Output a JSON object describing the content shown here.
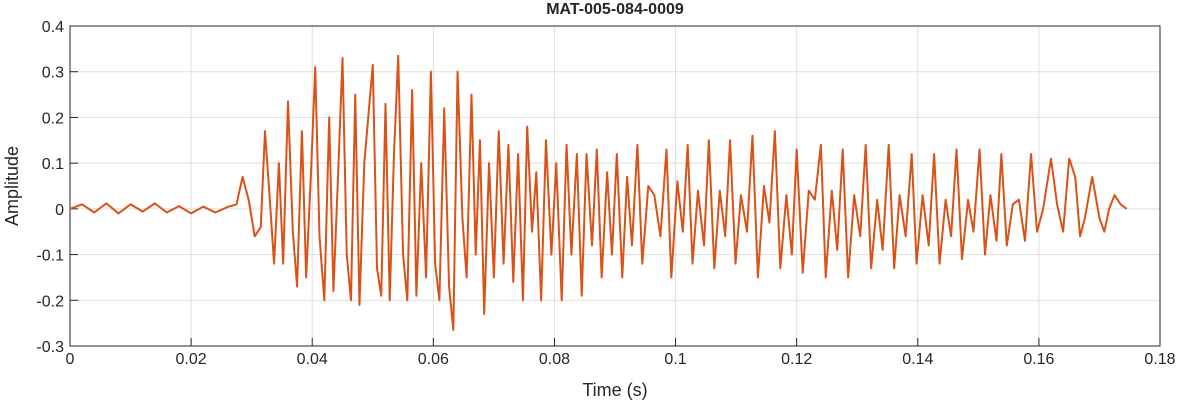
{
  "chart_data": {
    "type": "line",
    "title": "MAT-005-084-0009",
    "x_label": "Time (s)",
    "y_label": "Amplitude",
    "x": [
      0,
      0.002,
      0.004,
      0.006,
      0.008,
      0.01,
      0.012,
      0.014,
      0.016,
      0.018,
      0.02,
      0.022,
      0.024,
      0.026,
      0.0275,
      0.0285,
      0.0295,
      0.0305,
      0.0315,
      0.0322,
      0.033,
      0.0337,
      0.0345,
      0.0352,
      0.036,
      0.0368,
      0.0375,
      0.0383,
      0.039,
      0.0398,
      0.0405,
      0.0412,
      0.042,
      0.0428,
      0.0435,
      0.0442,
      0.045,
      0.0457,
      0.0464,
      0.0471,
      0.0478,
      0.0486,
      0.05,
      0.0507,
      0.0514,
      0.0521,
      0.0528,
      0.0535,
      0.0542,
      0.055,
      0.0557,
      0.0565,
      0.0572,
      0.058,
      0.0588,
      0.0596,
      0.0603,
      0.061,
      0.0618,
      0.0626,
      0.0633,
      0.064,
      0.0648,
      0.0655,
      0.0663,
      0.067,
      0.0677,
      0.0684,
      0.0692,
      0.07,
      0.0708,
      0.0716,
      0.0724,
      0.0732,
      0.074,
      0.0748,
      0.0755,
      0.0763,
      0.077,
      0.0778,
      0.0786,
      0.0795,
      0.0803,
      0.0812,
      0.082,
      0.0828,
      0.0837,
      0.0845,
      0.0853,
      0.0862,
      0.087,
      0.0878,
      0.0887,
      0.0895,
      0.0903,
      0.0912,
      0.092,
      0.0928,
      0.0937,
      0.0945,
      0.0955,
      0.0965,
      0.0975,
      0.0985,
      0.0993,
      0.1003,
      0.1012,
      0.102,
      0.1028,
      0.1037,
      0.1047,
      0.1055,
      0.1064,
      0.1073,
      0.1082,
      0.109,
      0.1099,
      0.1108,
      0.1118,
      0.1127,
      0.1136,
      0.1146,
      0.1155,
      0.1164,
      0.1173,
      0.1183,
      0.1192,
      0.12,
      0.121,
      0.122,
      0.123,
      0.124,
      0.1248,
      0.1258,
      0.1267,
      0.1276,
      0.1285,
      0.1295,
      0.1305,
      0.1314,
      0.1323,
      0.1333,
      0.1342,
      0.1352,
      0.1361,
      0.137,
      0.138,
      0.139,
      0.1398,
      0.1408,
      0.1418,
      0.1427,
      0.1436,
      0.1446,
      0.1455,
      0.1464,
      0.1473,
      0.1483,
      0.1492,
      0.1502,
      0.1511,
      0.152,
      0.153,
      0.1538,
      0.1547,
      0.1557,
      0.1567,
      0.1577,
      0.1587,
      0.1597,
      0.1607,
      0.162,
      0.163,
      0.164,
      0.165,
      0.166,
      0.1668,
      0.1676,
      0.1688,
      0.17,
      0.1708,
      0.1716,
      0.1725,
      0.1735,
      0.1745
    ],
    "series": [
      {
        "color": "#d95319",
        "values": [
          0,
          0.01,
          -0.008,
          0.012,
          -0.01,
          0.01,
          -0.006,
          0.012,
          -0.008,
          0.006,
          -0.01,
          0.005,
          -0.008,
          0.004,
          0.01,
          0.07,
          0.02,
          -0.06,
          -0.04,
          0.17,
          0.02,
          -0.12,
          0.1,
          -0.12,
          0.235,
          -0.05,
          -0.17,
          0.17,
          -0.15,
          0.08,
          0.31,
          -0.06,
          -0.2,
          0.2,
          -0.18,
          0.05,
          0.33,
          -0.1,
          -0.2,
          0.25,
          -0.21,
          0.1,
          0.315,
          -0.13,
          -0.19,
          0.23,
          -0.2,
          0.12,
          0.335,
          -0.1,
          -0.2,
          0.26,
          -0.19,
          0.1,
          -0.15,
          0.3,
          -0.12,
          -0.2,
          0.22,
          -0.17,
          -0.265,
          0.3,
          -0.02,
          -0.15,
          0.25,
          -0.1,
          0.15,
          -0.23,
          0.1,
          -0.15,
          0.17,
          -0.12,
          0.14,
          -0.16,
          0.12,
          -0.2,
          0.18,
          -0.05,
          0.08,
          -0.2,
          0.15,
          -0.1,
          0.1,
          -0.2,
          0.14,
          -0.1,
          0.12,
          -0.19,
          0.12,
          -0.08,
          0.13,
          -0.15,
          0.08,
          -0.1,
          0.12,
          -0.15,
          0.07,
          -0.08,
          0.14,
          -0.12,
          0.05,
          0.03,
          -0.06,
          0.13,
          -0.15,
          0.06,
          -0.05,
          0.14,
          -0.12,
          0.04,
          -0.08,
          0.15,
          -0.13,
          0.04,
          -0.06,
          0.15,
          -0.12,
          0.03,
          -0.05,
          0.16,
          -0.15,
          0.05,
          -0.03,
          0.17,
          -0.13,
          0.03,
          -0.1,
          0.13,
          -0.14,
          0.04,
          0.02,
          0.14,
          -0.15,
          0.04,
          -0.09,
          0.13,
          -0.15,
          0.03,
          -0.06,
          0.14,
          -0.13,
          0.02,
          -0.09,
          0.14,
          -0.13,
          0.03,
          -0.06,
          0.12,
          -0.12,
          0.03,
          -0.08,
          0.12,
          -0.12,
          0.02,
          -0.06,
          0.13,
          -0.11,
          0.02,
          -0.05,
          0.13,
          -0.1,
          0.03,
          -0.07,
          0.12,
          -0.08,
          0.01,
          0.02,
          -0.07,
          0.12,
          -0.05,
          0,
          0.11,
          0.01,
          -0.05,
          0.11,
          0.07,
          -0.06,
          -0.02,
          0.07,
          -0.02,
          -0.05,
          0,
          0.03,
          0.01,
          0
        ]
      }
    ],
    "xlim": [
      0,
      0.18
    ],
    "xticks": [
      0,
      0.02,
      0.04,
      0.06,
      0.08,
      0.1,
      0.12,
      0.14,
      0.16,
      0.18
    ],
    "ylim": [
      -0.3,
      0.4
    ],
    "yticks": [
      -0.3,
      -0.2,
      -0.1,
      0,
      0.1,
      0.2,
      0.3,
      0.4
    ],
    "grid": true
  }
}
